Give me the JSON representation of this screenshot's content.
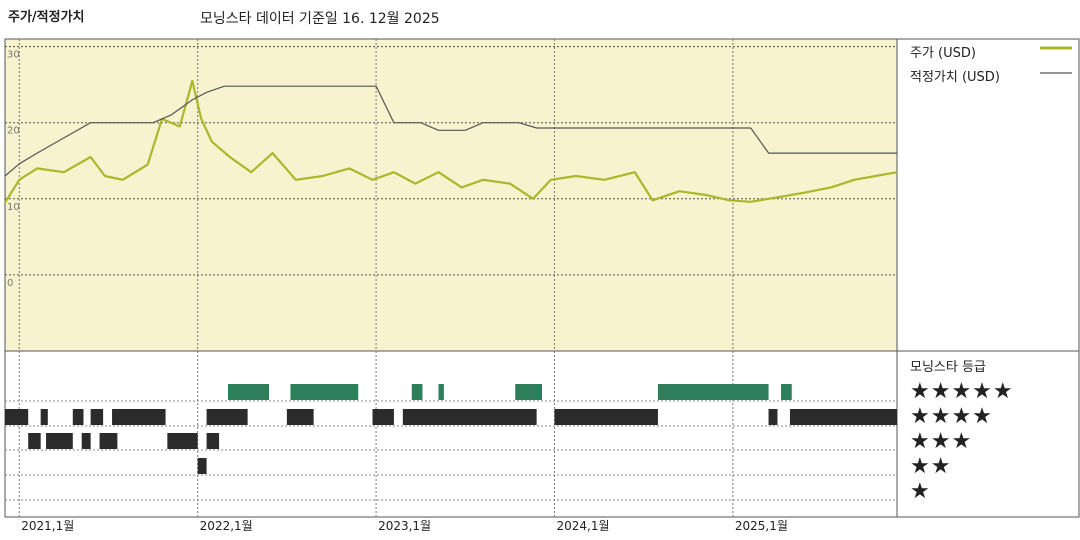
{
  "header": {
    "title": "주가/적정가치",
    "subtitle": "모닝스타 데이터 기준일 16. 12월 2025"
  },
  "legend": {
    "price_label": "주가 (USD)",
    "fair_label": "적정가치 (USD)",
    "rating_title": "모닝스타 등급"
  },
  "colors": {
    "price": "#a8b82a",
    "fair": "#555555",
    "panel_bg": "#f7f3cf",
    "green": "#2e7d5b",
    "dark": "#2b2b2b"
  },
  "stars": [
    "★★★★★",
    "★★★★",
    "★★★",
    "★★",
    "★"
  ],
  "chart_data": {
    "type": "line",
    "y_ticks": [
      "30",
      "20",
      "10",
      "0"
    ],
    "x_ticks": [
      "2021,1월",
      "2022,1월",
      "2023,1월",
      "2024,1월",
      "2025,1월"
    ],
    "xlim": [
      2020.92,
      2025.92
    ],
    "ylim": [
      -10,
      31
    ],
    "series": [
      {
        "name": "주가 (USD)",
        "x": [
          2020.92,
          2021.0,
          2021.1,
          2021.25,
          2021.4,
          2021.48,
          2021.58,
          2021.72,
          2021.8,
          2021.9,
          2021.97,
          2022.02,
          2022.08,
          2022.18,
          2022.3,
          2022.42,
          2022.55,
          2022.7,
          2022.85,
          2022.98,
          2023.1,
          2023.22,
          2023.35,
          2023.48,
          2023.6,
          2023.75,
          2023.88,
          2023.98,
          2024.12,
          2024.28,
          2024.45,
          2024.55,
          2024.7,
          2024.85,
          2024.98,
          2025.1,
          2025.25,
          2025.4,
          2025.55,
          2025.68,
          2025.8,
          2025.92
        ],
        "y": [
          9.5,
          12.5,
          14,
          13.5,
          15.5,
          13,
          12.5,
          14.5,
          20.5,
          19.5,
          25.5,
          20.5,
          17.5,
          15.5,
          13.5,
          16,
          12.5,
          13,
          14,
          12.5,
          13.5,
          12,
          13.5,
          11.5,
          12.5,
          12,
          10,
          12.5,
          13,
          12.5,
          13.5,
          9.8,
          11,
          10.5,
          9.8,
          9.6,
          10.2,
          10.8,
          11.5,
          12.5,
          13,
          13.5
        ]
      },
      {
        "name": "적정가치 (USD)",
        "x": [
          2020.92,
          2021.0,
          2021.1,
          2021.25,
          2021.4,
          2021.55,
          2021.75,
          2021.85,
          2021.97,
          2022.05,
          2022.15,
          2022.3,
          2022.6,
          2022.9,
          2023.0,
          2023.1,
          2023.25,
          2023.35,
          2023.5,
          2023.6,
          2023.8,
          2023.9,
          2024.0,
          2024.2,
          2024.4,
          2024.6,
          2024.75,
          2024.88,
          2024.98,
          2025.1,
          2025.2,
          2025.92
        ],
        "y": [
          13,
          14.6,
          16,
          18,
          20,
          20,
          20,
          21,
          23,
          24,
          24.8,
          24.8,
          24.8,
          24.8,
          24.8,
          20,
          20,
          19,
          19,
          20,
          20,
          19.3,
          19.3,
          19.3,
          19.3,
          19.3,
          19.3,
          19.3,
          19.3,
          19.3,
          16,
          16
        ]
      }
    ],
    "rating_bands": [
      {
        "stars": 5,
        "ranges": [
          [
            2022.17,
            2022.4
          ],
          [
            2022.52,
            2022.9
          ],
          [
            2023.2,
            2023.26
          ],
          [
            2023.35,
            2023.38
          ],
          [
            2023.78,
            2023.93
          ],
          [
            2024.58,
            2025.2
          ],
          [
            2025.27,
            2025.33
          ]
        ]
      },
      {
        "stars": 4,
        "ranges": [
          [
            2020.92,
            2021.05
          ],
          [
            2021.12,
            2021.16
          ],
          [
            2021.3,
            2021.36
          ],
          [
            2021.4,
            2021.47
          ],
          [
            2021.52,
            2021.82
          ],
          [
            2022.05,
            2022.28
          ],
          [
            2022.5,
            2022.65
          ],
          [
            2022.98,
            2023.1
          ],
          [
            2023.15,
            2023.9
          ],
          [
            2024.0,
            2024.58
          ],
          [
            2025.2,
            2025.25
          ],
          [
            2025.32,
            2025.92
          ]
        ]
      },
      {
        "stars": 3,
        "ranges": [
          [
            2021.05,
            2021.12
          ],
          [
            2021.15,
            2021.3
          ],
          [
            2021.35,
            2021.4
          ],
          [
            2021.45,
            2021.55
          ],
          [
            2021.83,
            2022.0
          ],
          [
            2022.05,
            2022.12
          ]
        ]
      },
      {
        "stars": 2,
        "ranges": [
          [
            2022.0,
            2022.05
          ]
        ]
      },
      {
        "stars": 1,
        "ranges": []
      }
    ]
  }
}
